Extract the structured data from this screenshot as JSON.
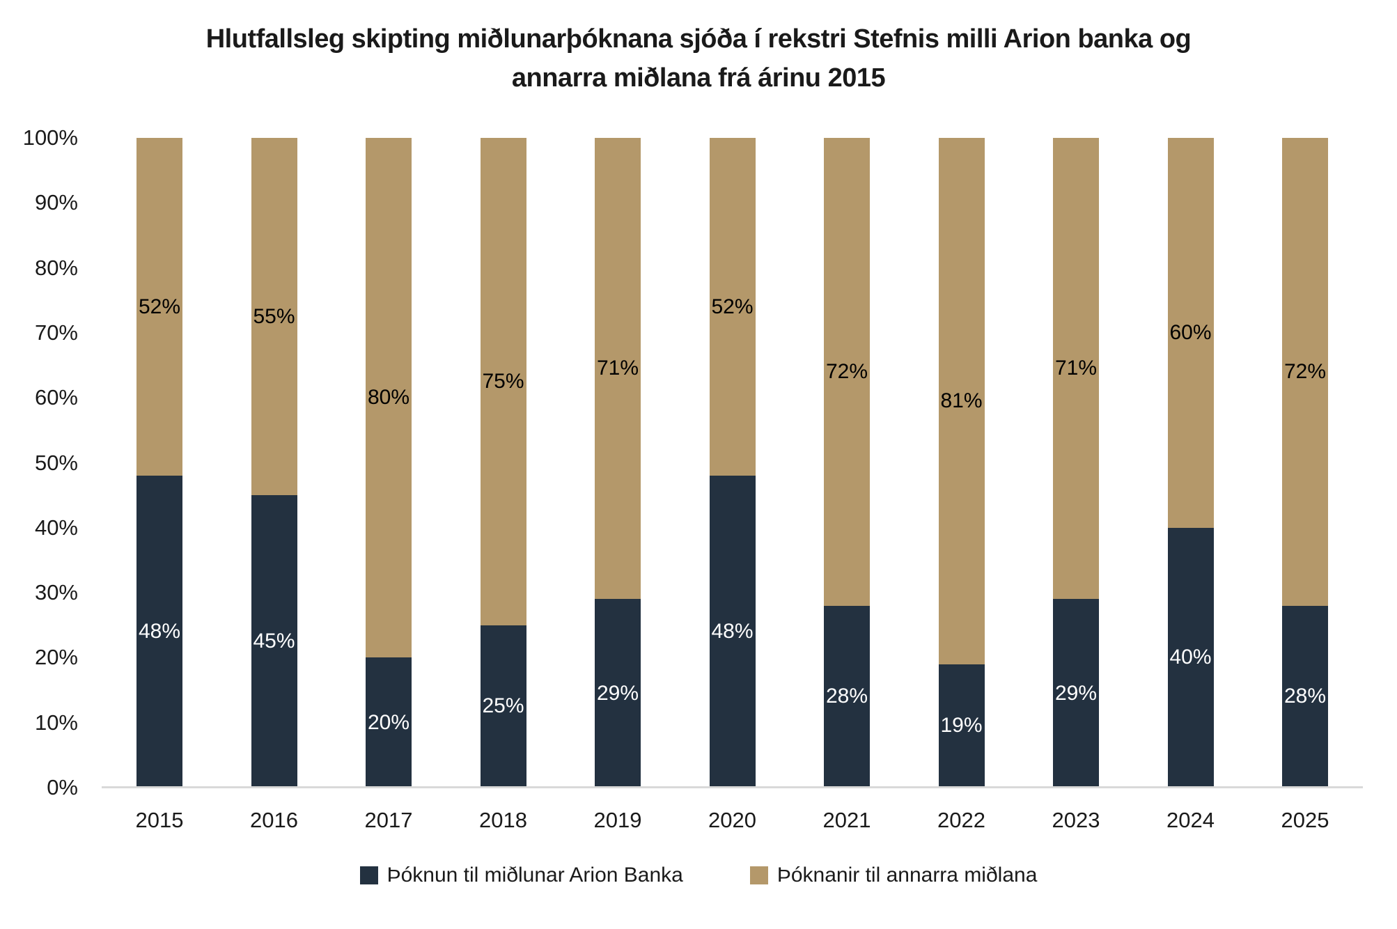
{
  "title": {
    "line1": "Hlutfallsleg skipting miðlunarþóknana sjóða í rekstri Stefnis milli Arion banka og",
    "line2": "annarra miðlana frá árinu 2015"
  },
  "chart_data": {
    "type": "bar",
    "subtype": "stacked-100-percent-column",
    "title": "Hlutfallsleg skipting miðlunarþóknana sjóða í rekstri Stefnis milli Arion banka og annarra miðlana frá árinu 2015",
    "categories": [
      "2015",
      "2016",
      "2017",
      "2018",
      "2019",
      "2020",
      "2021",
      "2022",
      "2023",
      "2024",
      "2025"
    ],
    "series": [
      {
        "name": "Þóknun til miðlunar Arion Banka",
        "color": "#233140",
        "label_text_color": "#ffffff",
        "values": [
          48,
          45,
          20,
          25,
          29,
          48,
          28,
          19,
          29,
          40,
          28
        ]
      },
      {
        "name": "Þóknanir til annarra miðlana",
        "color": "#b4986a",
        "label_text_color": "#000000",
        "values": [
          52,
          55,
          80,
          75,
          71,
          52,
          72,
          81,
          71,
          60,
          72
        ]
      }
    ],
    "value_suffix": "%",
    "y_ticks": [
      "0%",
      "10%",
      "20%",
      "30%",
      "40%",
      "50%",
      "60%",
      "70%",
      "80%",
      "90%",
      "100%"
    ],
    "ylim": [
      0,
      100
    ],
    "grid": false,
    "legend_position": "bottom",
    "axis_line_color": "#d9d9d9",
    "background_color": "#ffffff"
  }
}
